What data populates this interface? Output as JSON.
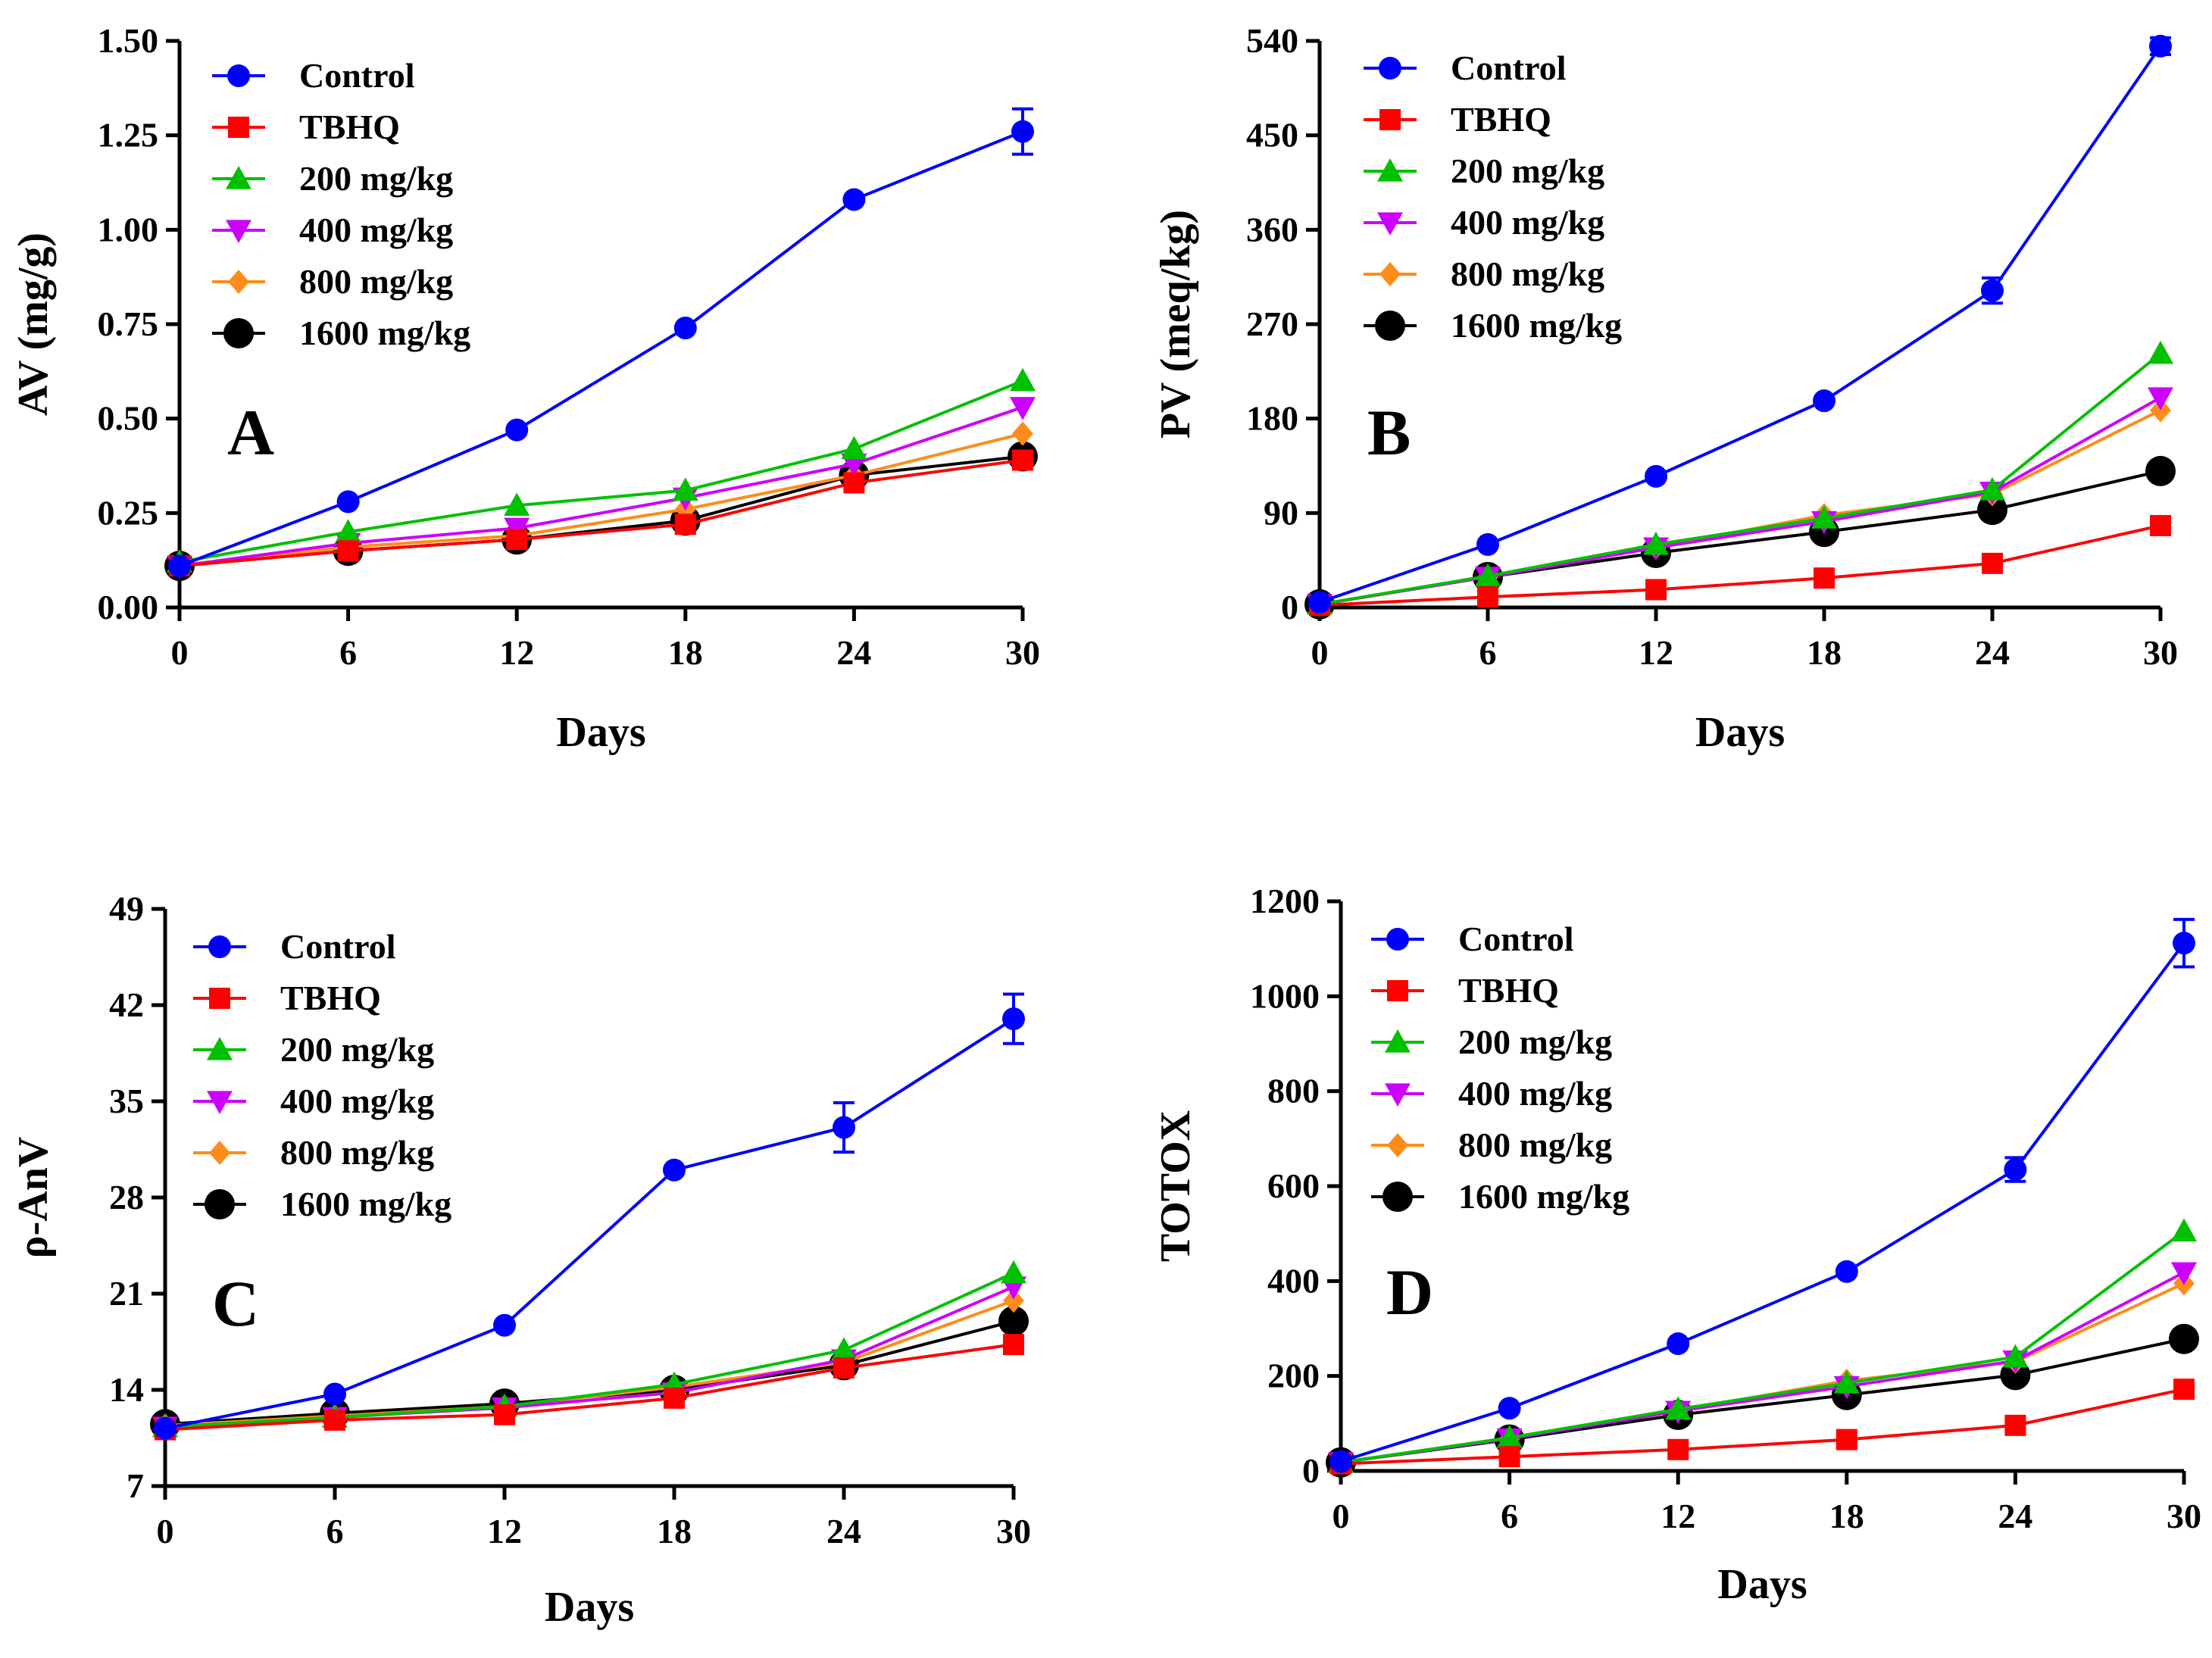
{
  "chart_data": [
    {
      "type": "line",
      "panel_label": "A",
      "xlabel": "Days",
      "ylabel": "AV (mg/g)",
      "x": [
        0,
        6,
        12,
        18,
        24,
        30
      ],
      "xticks": [
        "0",
        "6",
        "12",
        "18",
        "24",
        "30"
      ],
      "yticks": [
        "0.00",
        "0.25",
        "0.50",
        "0.75",
        "1.00",
        "1.25",
        "1.50"
      ],
      "xlim": [
        0,
        30
      ],
      "ylim": [
        0,
        1.5
      ],
      "legend": "top-left",
      "series": [
        {
          "name": "Control",
          "color": "#0000ff",
          "marker": "circle",
          "values": [
            0.11,
            0.28,
            0.47,
            0.74,
            1.08,
            1.26
          ],
          "errors": [
            0,
            0,
            0,
            0,
            0,
            0.06
          ]
        },
        {
          "name": "TBHQ",
          "color": "#ff0000",
          "marker": "square",
          "values": [
            0.11,
            0.15,
            0.18,
            0.22,
            0.33,
            0.39
          ],
          "errors": [
            0,
            0,
            0,
            0,
            0,
            0
          ]
        },
        {
          "name": "200 mg/kg",
          "color": "#00c000",
          "marker": "triangle-up",
          "values": [
            0.12,
            0.2,
            0.27,
            0.31,
            0.42,
            0.6
          ],
          "errors": [
            0,
            0,
            0,
            0,
            0,
            0
          ]
        },
        {
          "name": "400 mg/kg",
          "color": "#cc00ff",
          "marker": "triangle-down",
          "values": [
            0.11,
            0.17,
            0.21,
            0.29,
            0.38,
            0.53
          ],
          "errors": [
            0,
            0,
            0,
            0,
            0,
            0
          ]
        },
        {
          "name": "800 mg/kg",
          "color": "#ff8c1a",
          "marker": "diamond",
          "values": [
            0.11,
            0.16,
            0.19,
            0.26,
            0.35,
            0.46
          ],
          "errors": [
            0,
            0,
            0,
            0,
            0,
            0
          ]
        },
        {
          "name": "1600 mg/kg",
          "color": "#000000",
          "marker": "circle",
          "values": [
            0.11,
            0.15,
            0.18,
            0.23,
            0.35,
            0.4
          ],
          "errors": [
            0,
            0,
            0,
            0,
            0,
            0
          ]
        }
      ]
    },
    {
      "type": "line",
      "panel_label": "B",
      "xlabel": "Days",
      "ylabel": "PV (meq/kg)",
      "x": [
        0,
        6,
        12,
        18,
        24,
        30
      ],
      "xticks": [
        "0",
        "6",
        "12",
        "18",
        "24",
        "30"
      ],
      "yticks": [
        "0",
        "90",
        "180",
        "270",
        "360",
        "450",
        "540"
      ],
      "xlim": [
        0,
        30
      ],
      "ylim": [
        0,
        540
      ],
      "legend": "top-left",
      "series": [
        {
          "name": "Control",
          "color": "#0000ff",
          "marker": "circle",
          "values": [
            5,
            60,
            125,
            197,
            302,
            535
          ],
          "errors": [
            0,
            0,
            0,
            0,
            12,
            8
          ]
        },
        {
          "name": "TBHQ",
          "color": "#ff0000",
          "marker": "square",
          "values": [
            2,
            10,
            17,
            28,
            42,
            78
          ],
          "errors": [
            0,
            0,
            0,
            0,
            0,
            0
          ]
        },
        {
          "name": "200 mg/kg",
          "color": "#00c000",
          "marker": "triangle-up",
          "values": [
            3,
            30,
            60,
            85,
            112,
            242
          ],
          "errors": [
            0,
            0,
            0,
            0,
            0,
            0
          ]
        },
        {
          "name": "400 mg/kg",
          "color": "#cc00ff",
          "marker": "triangle-down",
          "values": [
            3,
            29,
            57,
            82,
            110,
            200
          ],
          "errors": [
            0,
            0,
            0,
            0,
            0,
            0
          ]
        },
        {
          "name": "800 mg/kg",
          "color": "#ff8c1a",
          "marker": "diamond",
          "values": [
            3,
            29,
            57,
            88,
            108,
            188
          ],
          "errors": [
            0,
            0,
            0,
            0,
            0,
            0
          ]
        },
        {
          "name": "1600 mg/kg",
          "color": "#000000",
          "marker": "circle",
          "values": [
            3,
            29,
            52,
            72,
            93,
            130
          ],
          "errors": [
            0,
            0,
            0,
            0,
            0,
            0
          ]
        }
      ]
    },
    {
      "type": "line",
      "panel_label": "C",
      "xlabel": "Days",
      "ylabel": "ρ-AnV",
      "x": [
        0,
        6,
        12,
        18,
        24,
        30
      ],
      "xticks": [
        "0",
        "6",
        "12",
        "18",
        "24",
        "30"
      ],
      "yticks": [
        "7",
        "14",
        "21",
        "28",
        "35",
        "42",
        "49"
      ],
      "xlim": [
        0,
        30
      ],
      "ylim": [
        7,
        49
      ],
      "legend": "top-left",
      "series": [
        {
          "name": "Control",
          "color": "#0000ff",
          "marker": "circle",
          "values": [
            11.2,
            13.7,
            18.7,
            30.0,
            33.1,
            41.0
          ],
          "errors": [
            0,
            0,
            0,
            0,
            1.8,
            1.8
          ]
        },
        {
          "name": "TBHQ",
          "color": "#ff0000",
          "marker": "square",
          "values": [
            11.1,
            11.8,
            12.2,
            13.4,
            15.6,
            17.3
          ],
          "errors": [
            0,
            0,
            0,
            0,
            0,
            0
          ]
        },
        {
          "name": "200 mg/kg",
          "color": "#00c000",
          "marker": "triangle-up",
          "values": [
            11.3,
            12.0,
            12.8,
            14.4,
            16.9,
            22.5
          ],
          "errors": [
            0,
            0,
            0,
            0,
            0,
            0
          ]
        },
        {
          "name": "400 mg/kg",
          "color": "#cc00ff",
          "marker": "triangle-down",
          "values": [
            11.3,
            12.0,
            12.7,
            13.8,
            16.2,
            21.5
          ],
          "errors": [
            0,
            0,
            0,
            0,
            0,
            0
          ]
        },
        {
          "name": "800 mg/kg",
          "color": "#ff8c1a",
          "marker": "diamond",
          "values": [
            11.4,
            12.1,
            12.8,
            14.2,
            16.0,
            20.5
          ],
          "errors": [
            0,
            0,
            0,
            0,
            0,
            0
          ]
        },
        {
          "name": "1600 mg/kg",
          "color": "#000000",
          "marker": "circle",
          "values": [
            11.5,
            12.3,
            13.0,
            14.0,
            15.8,
            19.0
          ],
          "errors": [
            0,
            0,
            0,
            0,
            0,
            0
          ]
        }
      ]
    },
    {
      "type": "line",
      "panel_label": "D",
      "xlabel": "Days",
      "ylabel": "TOTOX",
      "x": [
        0,
        6,
        12,
        18,
        24,
        30
      ],
      "xticks": [
        "0",
        "6",
        "12",
        "18",
        "24",
        "30"
      ],
      "yticks": [
        "0",
        "200",
        "400",
        "600",
        "800",
        "1000",
        "1200"
      ],
      "xlim": [
        0,
        30
      ],
      "ylim": [
        0,
        1200
      ],
      "legend": "top-left",
      "series": [
        {
          "name": "Control",
          "color": "#0000ff",
          "marker": "circle",
          "values": [
            20,
            132,
            268,
            420,
            635,
            1112
          ],
          "errors": [
            0,
            0,
            0,
            0,
            25,
            50
          ]
        },
        {
          "name": "TBHQ",
          "color": "#ff0000",
          "marker": "square",
          "values": [
            15,
            30,
            45,
            66,
            96,
            172
          ],
          "errors": [
            0,
            0,
            0,
            0,
            0,
            0
          ]
        },
        {
          "name": "200 mg/kg",
          "color": "#00c000",
          "marker": "triangle-up",
          "values": [
            18,
            70,
            130,
            185,
            240,
            505
          ],
          "errors": [
            0,
            0,
            0,
            0,
            0,
            0
          ]
        },
        {
          "name": "400 mg/kg",
          "color": "#cc00ff",
          "marker": "triangle-down",
          "values": [
            18,
            68,
            126,
            178,
            232,
            418
          ],
          "errors": [
            0,
            0,
            0,
            0,
            0,
            0
          ]
        },
        {
          "name": "800 mg/kg",
          "color": "#ff8c1a",
          "marker": "diamond",
          "values": [
            18,
            68,
            127,
            190,
            230,
            395
          ],
          "errors": [
            0,
            0,
            0,
            0,
            0,
            0
          ]
        },
        {
          "name": "1600 mg/kg",
          "color": "#000000",
          "marker": "circle",
          "values": [
            18,
            66,
            118,
            160,
            202,
            278
          ],
          "errors": [
            0,
            0,
            0,
            0,
            0,
            0
          ]
        }
      ]
    }
  ]
}
